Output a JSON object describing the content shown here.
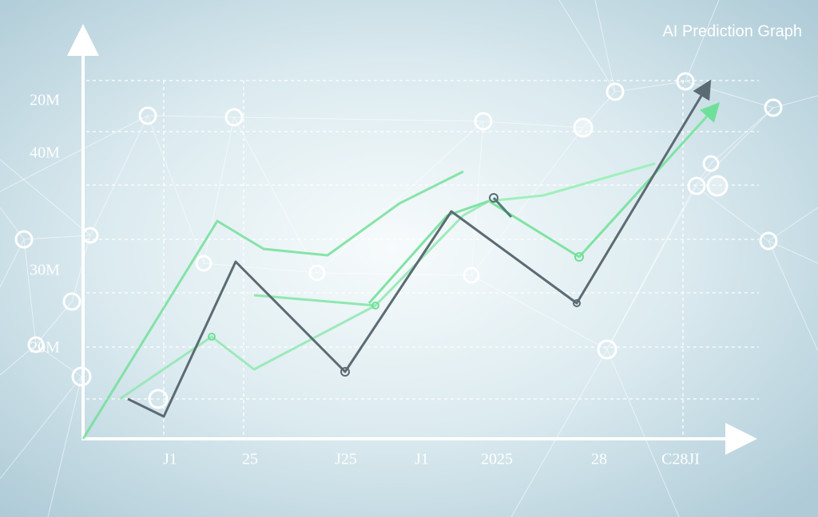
{
  "title": "AI Prediction Graph",
  "y_labels": [
    "20M",
    "40M",
    "30M",
    "20M"
  ],
  "x_labels": [
    "J1",
    "25",
    "J25",
    "J1",
    "2025",
    "28",
    "C28JI"
  ]
}
